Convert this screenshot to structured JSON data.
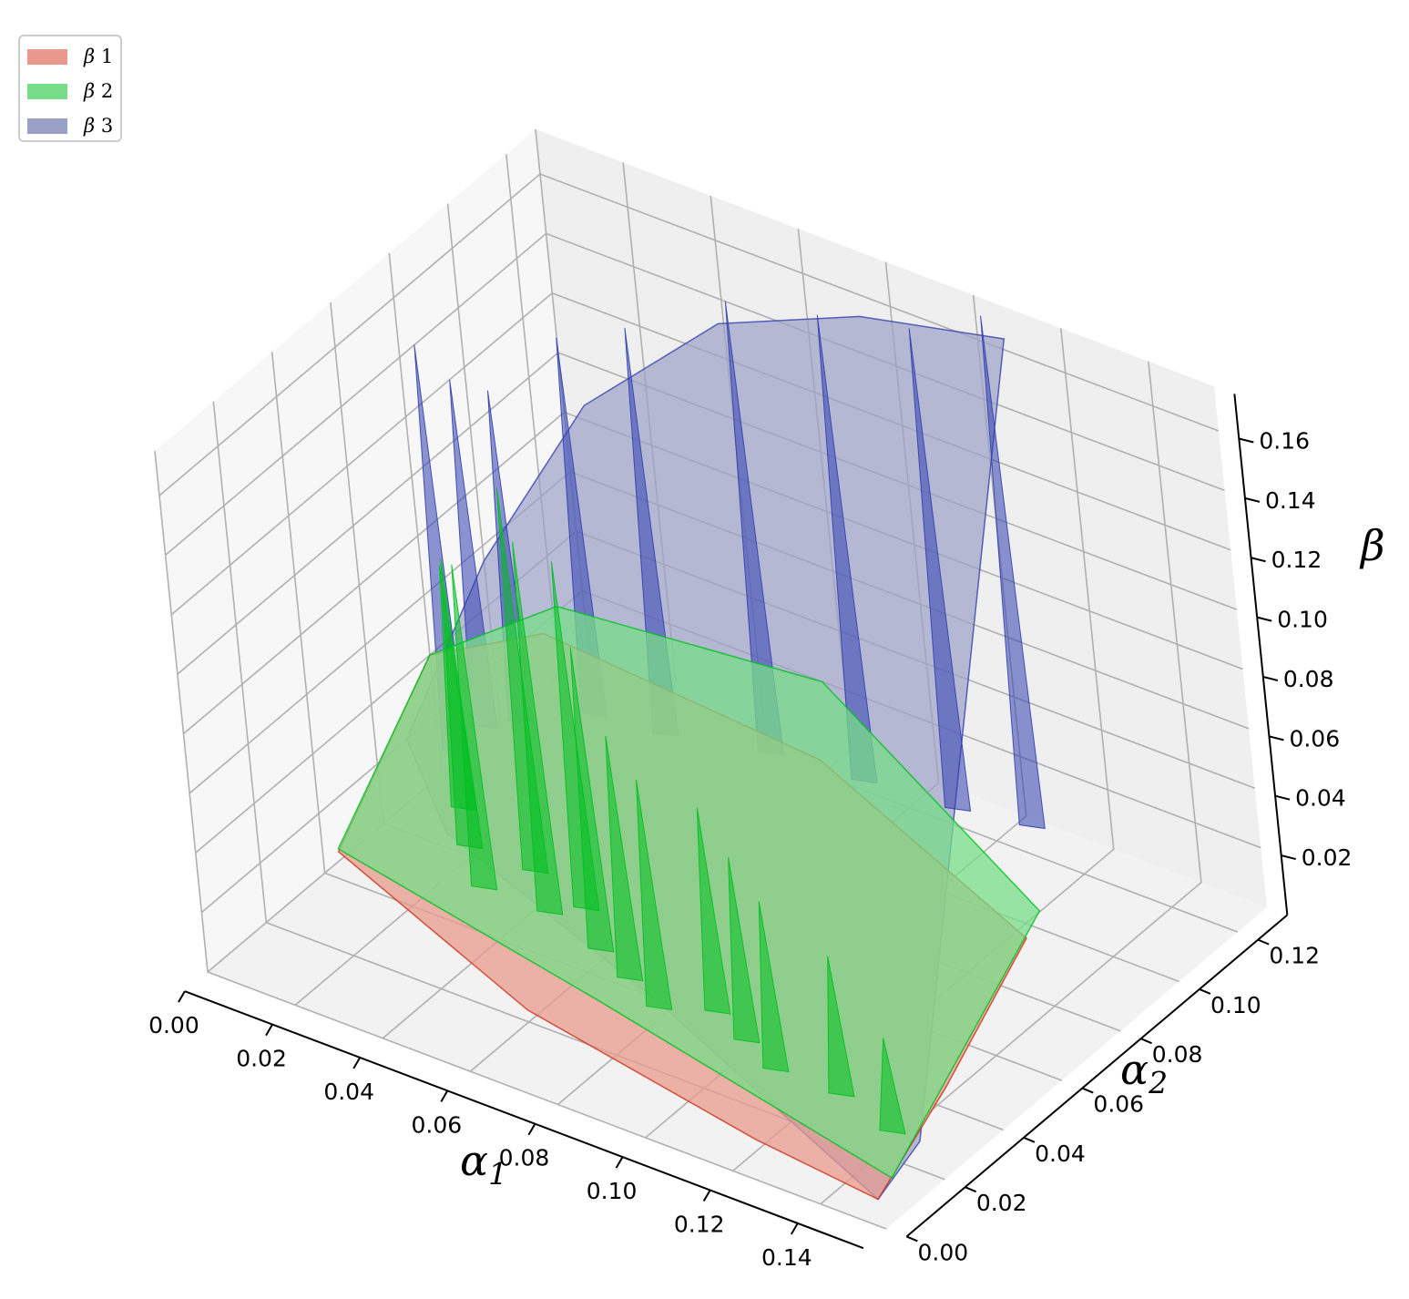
{
  "chart_data": {
    "type": "surface3d",
    "title": "",
    "xlabel": "α1",
    "ylabel": "α2",
    "zlabel": "β",
    "xlim": [
      0.0,
      0.155
    ],
    "ylim": [
      0.0,
      0.13
    ],
    "zlim": [
      0.0,
      0.175
    ],
    "x_ticks": [
      "0.00",
      "0.02",
      "0.04",
      "0.06",
      "0.08",
      "0.10",
      "0.12",
      "0.14"
    ],
    "y_ticks": [
      "0.00",
      "0.02",
      "0.04",
      "0.06",
      "0.08",
      "0.10",
      "0.12"
    ],
    "z_ticks": [
      "0.02",
      "0.04",
      "0.06",
      "0.08",
      "0.10",
      "0.12",
      "0.14",
      "0.16"
    ],
    "grid": true,
    "legend_position": "top-left",
    "series": [
      {
        "name": "β 1",
        "greek": "β",
        "index": "1",
        "color": "#e8998c",
        "edge_color": "#d03018",
        "surface": [
          [
            0.0,
            0.045,
            0.003
          ],
          [
            0.06,
            0.02,
            0.004
          ],
          [
            0.12,
            0.008,
            0.004
          ],
          [
            0.15,
            0.005,
            0.003
          ],
          [
            0.15,
            0.03,
            0.02
          ],
          [
            0.15,
            0.06,
            0.045
          ],
          [
            0.09,
            0.08,
            0.055
          ],
          [
            0.02,
            0.09,
            0.05
          ],
          [
            0.0,
            0.08,
            0.04
          ]
        ]
      },
      {
        "name": "β 2",
        "greek": "β",
        "index": "2",
        "color": "#77dd88",
        "edge_color": "#00c020",
        "surface": [
          [
            0.0,
            0.045,
            0.004
          ],
          [
            0.07,
            0.03,
            0.004
          ],
          [
            0.15,
            0.01,
            0.006
          ],
          [
            0.15,
            0.04,
            0.03
          ],
          [
            0.15,
            0.065,
            0.05
          ],
          [
            0.085,
            0.09,
            0.07
          ],
          [
            0.02,
            0.095,
            0.055
          ],
          [
            0.0,
            0.08,
            0.04
          ]
        ],
        "spikes": [
          [
            0.012,
            0.07,
            0.085
          ],
          [
            0.02,
            0.06,
            0.1
          ],
          [
            0.03,
            0.05,
            0.112
          ],
          [
            0.035,
            0.06,
            0.132
          ],
          [
            0.045,
            0.05,
            0.128
          ],
          [
            0.05,
            0.055,
            0.12
          ],
          [
            0.06,
            0.045,
            0.105
          ],
          [
            0.07,
            0.04,
            0.085
          ],
          [
            0.08,
            0.035,
            0.08
          ],
          [
            0.09,
            0.04,
            0.072
          ],
          [
            0.1,
            0.035,
            0.065
          ],
          [
            0.11,
            0.03,
            0.06
          ],
          [
            0.125,
            0.03,
            0.05
          ],
          [
            0.14,
            0.025,
            0.035
          ]
        ]
      },
      {
        "name": "β 3",
        "greek": "β",
        "index": "3",
        "color": "#9ba1c6",
        "edge_color": "#3340b0",
        "surface": [
          [
            0.0,
            0.07,
            0.02
          ],
          [
            0.0,
            0.1,
            0.055
          ],
          [
            0.02,
            0.11,
            0.11
          ],
          [
            0.05,
            0.115,
            0.15
          ],
          [
            0.08,
            0.12,
            0.165
          ],
          [
            0.11,
            0.125,
            0.17
          ],
          [
            0.15,
            0.02,
            0.01
          ],
          [
            0.15,
            0.005,
            0.003
          ],
          [
            0.09,
            0.02,
            0.025
          ],
          [
            0.03,
            0.04,
            0.03
          ]
        ],
        "spikes": [
          [
            0.0,
            0.085,
            0.14
          ],
          [
            0.0,
            0.095,
            0.12
          ],
          [
            0.005,
            0.1,
            0.115
          ],
          [
            0.015,
            0.11,
            0.13
          ],
          [
            0.03,
            0.112,
            0.14
          ],
          [
            0.05,
            0.118,
            0.155
          ],
          [
            0.07,
            0.12,
            0.16
          ],
          [
            0.09,
            0.122,
            0.165
          ],
          [
            0.105,
            0.125,
            0.175
          ]
        ]
      }
    ]
  }
}
